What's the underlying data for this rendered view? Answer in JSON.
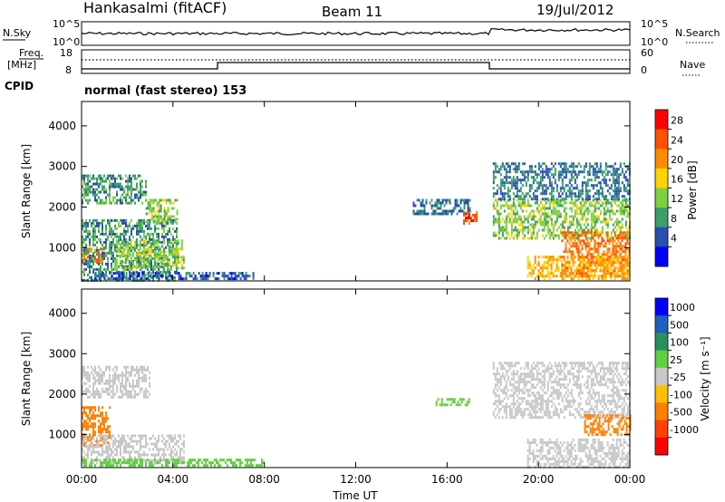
{
  "header": {
    "station": "Hankasalmi (fitACF)",
    "beam": "Beam 11",
    "date": "19/Jul/2012"
  },
  "top_panels": {
    "nsky_label": "N.Sky",
    "nsearch_label": "N.Search",
    "freq_label_1": "Freq.",
    "freq_label_2": "[MHz]",
    "nave_label": "Nave",
    "cpid_label": "CPID",
    "cpid_text": "normal (fast stereo) 153",
    "noise_ticks_left": [
      "10^5",
      "10^0"
    ],
    "noise_ticks_right": [
      "10^5",
      "10^0"
    ],
    "freq_ticks": [
      "18",
      "8"
    ],
    "nave_ticks": [
      "60",
      "0"
    ]
  },
  "power_colorbar": {
    "label": "Power [dB]",
    "ticks": [
      "28",
      "24",
      "20",
      "16",
      "12",
      "8",
      "4"
    ],
    "colors": [
      "#ff0000",
      "#ff5000",
      "#ff8c00",
      "#ffd200",
      "#7fd040",
      "#3a9f6a",
      "#2a4fb0",
      "#0000ff"
    ]
  },
  "velocity_colorbar": {
    "label": "Velocity [m s⁻¹]",
    "ticks": [
      "1000",
      "500",
      "100",
      "25",
      "-25",
      "-100",
      "-500",
      "-1000"
    ],
    "colors": [
      "#0000ff",
      "#1f5fc0",
      "#2a8f60",
      "#60d040",
      "#c8c8c8",
      "#ffbf00",
      "#ff8000",
      "#ff4000",
      "#ff0000"
    ]
  },
  "chart_data": [
    {
      "type": "heatmap",
      "title": "",
      "xlabel": "",
      "ylabel": "Slant Range [km]",
      "quantity": "Power [dB]",
      "xlim": [
        0,
        24
      ],
      "ylim": [
        180,
        4600
      ],
      "x_tick_labels": [
        "00:00",
        "04:00",
        "08:00",
        "12:00",
        "16:00",
        "20:00",
        "00:00"
      ],
      "y_tick_labels": [
        "1000",
        "2000",
        "3000",
        "4000"
      ],
      "regions": [
        {
          "t_start": 0.0,
          "t_end": 1.0,
          "r_start": 600,
          "r_end": 1000,
          "value": 24
        },
        {
          "t_start": 0.0,
          "t_end": 4.2,
          "r_start": 200,
          "r_end": 1700,
          "value": 10
        },
        {
          "t_start": 0.0,
          "t_end": 2.8,
          "r_start": 2100,
          "r_end": 2800,
          "value": 10
        },
        {
          "t_start": 2.8,
          "t_end": 4.2,
          "r_start": 1600,
          "r_end": 2200,
          "value": 14
        },
        {
          "t_start": 1.5,
          "t_end": 4.5,
          "r_start": 500,
          "r_end": 1200,
          "value": 14
        },
        {
          "t_start": 0.5,
          "t_end": 7.5,
          "r_start": 200,
          "r_end": 400,
          "value": 6
        },
        {
          "t_start": 14.5,
          "t_end": 17.0,
          "r_start": 1800,
          "r_end": 2200,
          "value": 8
        },
        {
          "t_start": 16.7,
          "t_end": 17.3,
          "r_start": 1600,
          "r_end": 1900,
          "value": 26
        },
        {
          "t_start": 18.0,
          "t_end": 24.0,
          "r_start": 1200,
          "r_end": 2200,
          "value": 14
        },
        {
          "t_start": 18.0,
          "t_end": 24.0,
          "r_start": 2200,
          "r_end": 3100,
          "value": 8
        },
        {
          "t_start": 21.0,
          "t_end": 24.0,
          "r_start": 300,
          "r_end": 1400,
          "value": 24
        },
        {
          "t_start": 19.5,
          "t_end": 24.0,
          "r_start": 200,
          "r_end": 800,
          "value": 20
        }
      ]
    },
    {
      "type": "heatmap",
      "title": "",
      "xlabel": "Time UT",
      "ylabel": "Slant Range [km]",
      "quantity": "Velocity [m s⁻¹]",
      "xlim": [
        0,
        24
      ],
      "ylim": [
        180,
        4600
      ],
      "x_tick_labels": [
        "00:00",
        "04:00",
        "08:00",
        "12:00",
        "16:00",
        "20:00",
        "00:00"
      ],
      "y_tick_labels": [
        "1000",
        "2000",
        "3000",
        "4000"
      ],
      "regions": [
        {
          "t_start": 0.0,
          "t_end": 1.2,
          "r_start": 700,
          "r_end": 1700,
          "value": -150
        },
        {
          "t_start": 0.0,
          "t_end": 4.5,
          "r_start": 300,
          "r_end": 1000,
          "value": 0
        },
        {
          "t_start": 0.0,
          "t_end": 3.0,
          "r_start": 1900,
          "r_end": 2700,
          "value": 0
        },
        {
          "t_start": 0.0,
          "t_end": 8.0,
          "r_start": 200,
          "r_end": 400,
          "value": 60
        },
        {
          "t_start": 15.5,
          "t_end": 17.0,
          "r_start": 1700,
          "r_end": 1900,
          "value": 60
        },
        {
          "t_start": 18.0,
          "t_end": 24.0,
          "r_start": 1400,
          "r_end": 2800,
          "value": 0
        },
        {
          "t_start": 22.0,
          "t_end": 24.0,
          "r_start": 1000,
          "r_end": 1500,
          "value": -150
        },
        {
          "t_start": 19.5,
          "t_end": 24.0,
          "r_start": 200,
          "r_end": 900,
          "value": 0
        }
      ]
    }
  ]
}
